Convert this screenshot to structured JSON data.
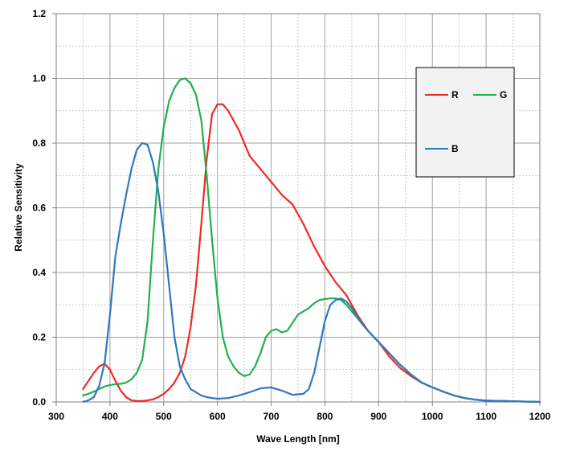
{
  "chart_data": {
    "type": "line",
    "title": "",
    "xlabel": "Wave Length [nm]",
    "ylabel": "Relative Sensitivity",
    "xlim": [
      300,
      1200
    ],
    "ylim": [
      0,
      1.2
    ],
    "xticks": [
      300,
      400,
      500,
      600,
      700,
      800,
      900,
      1000,
      1100,
      1200
    ],
    "xtick_labels": [
      "300",
      "400",
      "500",
      "600",
      "700",
      "800",
      "900",
      "1000",
      "1100",
      "1200"
    ],
    "yticks": [
      0,
      0.2,
      0.4,
      0.6,
      0.8,
      1.0,
      1.2
    ],
    "ytick_labels": [
      "0.0",
      "0.2",
      "0.4",
      "0.6",
      "0.8",
      "1.0",
      "1.2"
    ],
    "minor_x_step": 50,
    "minor_y_step": 0.1,
    "grid": true,
    "legend_position": "top-right",
    "series": [
      {
        "name": "R",
        "color": "#ee2a24",
        "x": [
          350,
          360,
          370,
          380,
          390,
          400,
          410,
          420,
          430,
          440,
          450,
          460,
          470,
          480,
          490,
          500,
          510,
          520,
          530,
          540,
          550,
          560,
          570,
          580,
          590,
          600,
          610,
          620,
          630,
          640,
          650,
          660,
          680,
          700,
          720,
          740,
          750,
          760,
          780,
          800,
          820,
          840,
          850,
          860,
          870,
          880,
          900,
          920,
          940,
          960,
          980,
          1000,
          1020,
          1040,
          1060,
          1080,
          1100,
          1150,
          1200
        ],
        "values": [
          0.04,
          0.065,
          0.09,
          0.11,
          0.118,
          0.1,
          0.065,
          0.035,
          0.015,
          0.005,
          0.003,
          0.003,
          0.005,
          0.008,
          0.015,
          0.025,
          0.04,
          0.06,
          0.09,
          0.14,
          0.23,
          0.36,
          0.55,
          0.75,
          0.89,
          0.92,
          0.92,
          0.9,
          0.87,
          0.84,
          0.8,
          0.76,
          0.72,
          0.68,
          0.64,
          0.61,
          0.58,
          0.55,
          0.48,
          0.42,
          0.37,
          0.33,
          0.3,
          0.27,
          0.245,
          0.22,
          0.185,
          0.14,
          0.105,
          0.08,
          0.06,
          0.045,
          0.032,
          0.02,
          0.012,
          0.007,
          0.004,
          0.002,
          0.0
        ]
      },
      {
        "name": "G",
        "color": "#22b14c",
        "x": [
          350,
          360,
          370,
          380,
          390,
          400,
          410,
          420,
          430,
          440,
          450,
          460,
          470,
          480,
          490,
          500,
          510,
          520,
          530,
          540,
          550,
          560,
          570,
          580,
          590,
          600,
          610,
          620,
          630,
          640,
          650,
          660,
          670,
          680,
          690,
          700,
          710,
          720,
          730,
          740,
          750,
          760,
          770,
          780,
          790,
          800,
          810,
          820,
          830,
          840,
          850,
          860,
          870,
          880,
          900,
          920,
          940,
          960,
          980,
          1000,
          1020,
          1040,
          1060,
          1080,
          1100,
          1150,
          1200
        ],
        "values": [
          0.02,
          0.025,
          0.032,
          0.04,
          0.048,
          0.052,
          0.055,
          0.056,
          0.06,
          0.07,
          0.09,
          0.13,
          0.25,
          0.5,
          0.72,
          0.85,
          0.93,
          0.97,
          0.995,
          1.0,
          0.985,
          0.95,
          0.87,
          0.7,
          0.5,
          0.32,
          0.2,
          0.14,
          0.11,
          0.09,
          0.08,
          0.085,
          0.11,
          0.15,
          0.2,
          0.22,
          0.225,
          0.215,
          0.22,
          0.245,
          0.27,
          0.28,
          0.29,
          0.305,
          0.315,
          0.318,
          0.32,
          0.32,
          0.315,
          0.3,
          0.28,
          0.26,
          0.24,
          0.22,
          0.185,
          0.15,
          0.115,
          0.085,
          0.06,
          0.045,
          0.032,
          0.02,
          0.012,
          0.007,
          0.004,
          0.002,
          0.0
        ]
      },
      {
        "name": "B",
        "color": "#2e78c2",
        "x": [
          350,
          360,
          370,
          380,
          390,
          400,
          410,
          420,
          430,
          440,
          450,
          460,
          470,
          480,
          490,
          500,
          510,
          520,
          530,
          540,
          550,
          560,
          570,
          580,
          590,
          600,
          620,
          640,
          660,
          680,
          700,
          720,
          740,
          760,
          770,
          780,
          790,
          800,
          810,
          820,
          830,
          840,
          850,
          860,
          870,
          880,
          900,
          920,
          940,
          960,
          980,
          1000,
          1020,
          1040,
          1060,
          1080,
          1100,
          1150,
          1200
        ],
        "values": [
          0.0,
          0.005,
          0.015,
          0.05,
          0.12,
          0.27,
          0.45,
          0.55,
          0.64,
          0.72,
          0.78,
          0.8,
          0.795,
          0.74,
          0.65,
          0.52,
          0.36,
          0.2,
          0.11,
          0.07,
          0.04,
          0.03,
          0.02,
          0.015,
          0.012,
          0.01,
          0.012,
          0.02,
          0.03,
          0.042,
          0.045,
          0.035,
          0.022,
          0.025,
          0.04,
          0.09,
          0.17,
          0.25,
          0.3,
          0.315,
          0.32,
          0.31,
          0.29,
          0.265,
          0.24,
          0.22,
          0.185,
          0.15,
          0.115,
          0.085,
          0.06,
          0.045,
          0.032,
          0.02,
          0.012,
          0.007,
          0.004,
          0.002,
          0.0
        ]
      }
    ]
  }
}
